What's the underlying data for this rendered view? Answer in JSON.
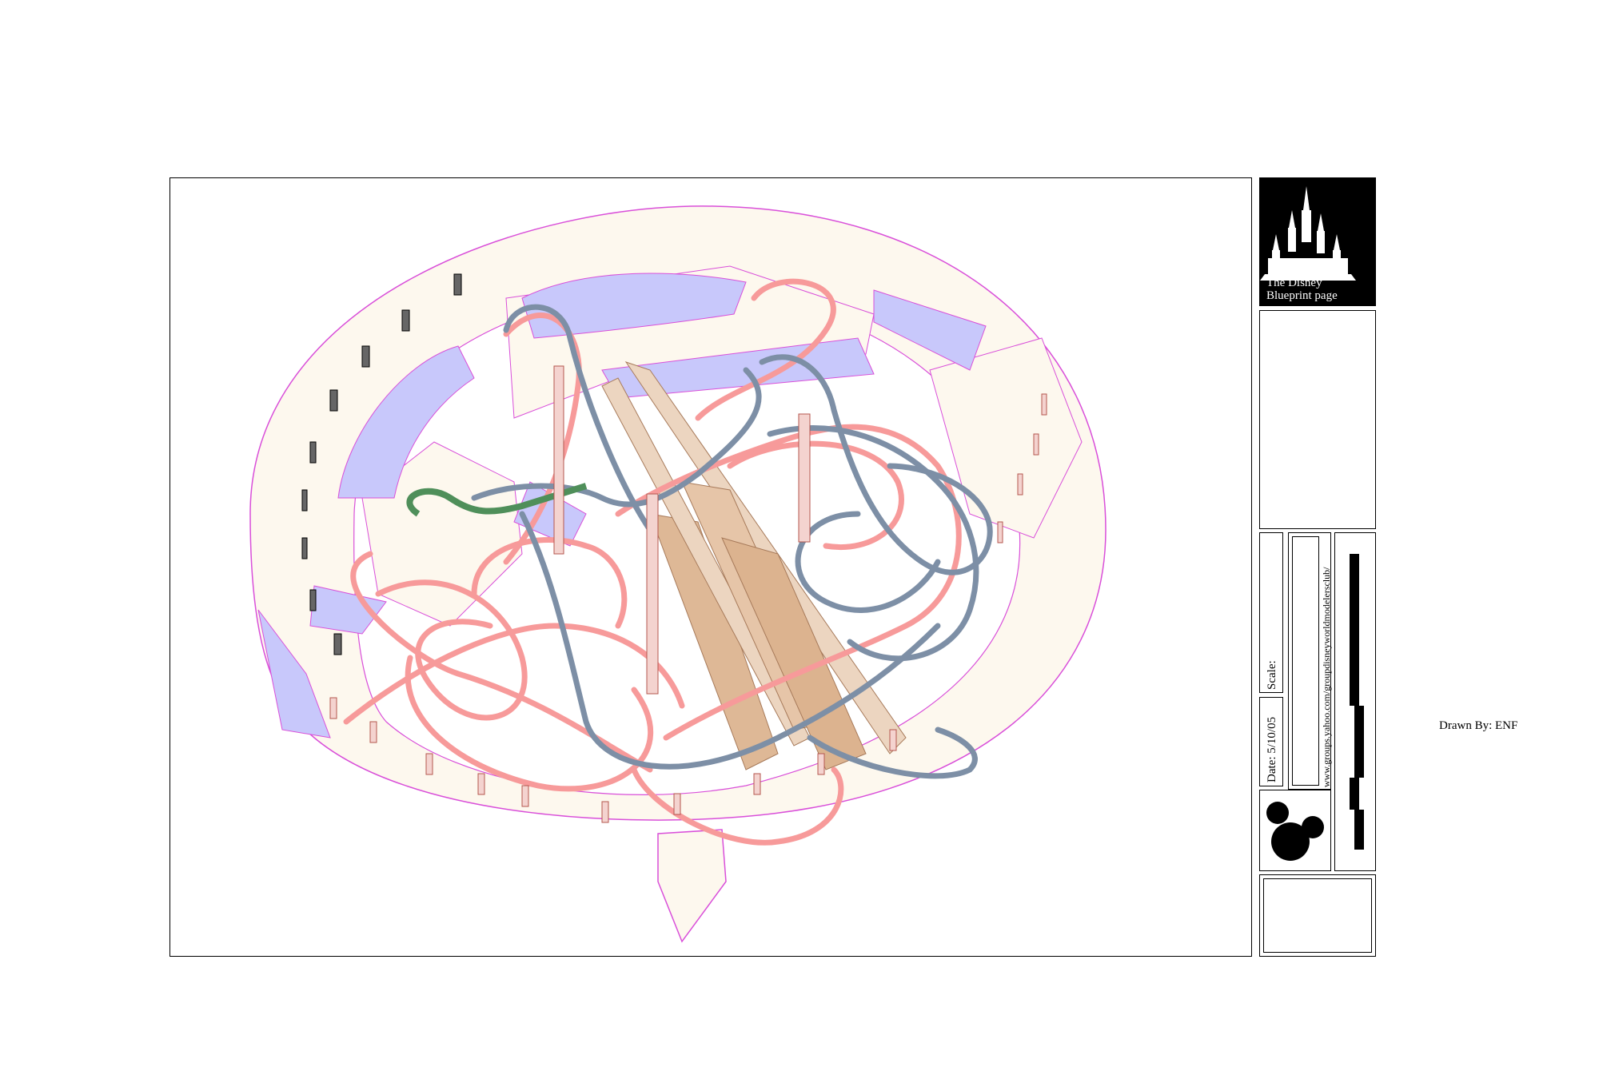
{
  "title_block": {
    "logo_line1": "The Disney",
    "logo_line2": "Blueprint page",
    "scale_label": "Scale:",
    "date_text": "Date:  5/10/05",
    "url": "www.groups.yahoo.com/groupdisneyworldmodelersclub/"
  },
  "drawn_by": "Drawn By: ENF",
  "colors": {
    "floor": "#fdf8ee",
    "floor_outline": "#d94fd9",
    "pool": "#c8c8fb",
    "track_pink": "#f79a9a",
    "track_blue": "#7d8fa6",
    "track_green": "#4f8f5a",
    "wall_tan": "#deb896",
    "column": "#f4d3cf"
  },
  "icons": [
    "castle-icon",
    "mickey-head-icon"
  ]
}
